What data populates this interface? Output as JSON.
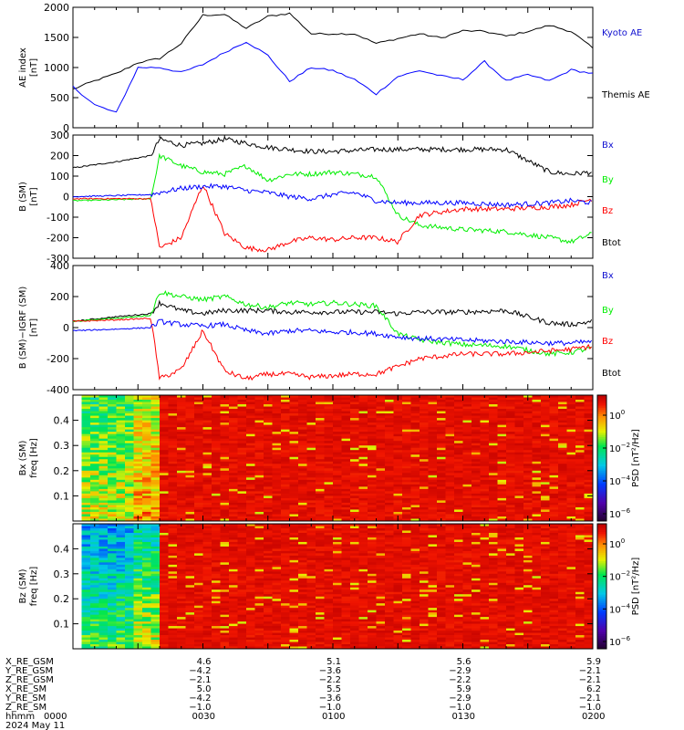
{
  "colors": {
    "black": "#000000",
    "blue": "#0000ff",
    "green": "#00ee00",
    "red": "#ff0000",
    "blue_label": "#1010d0"
  },
  "chart_data": [
    {
      "id": "ae",
      "type": "line",
      "ylabel": "AE index\n[nT]",
      "ylim": [
        0,
        2000
      ],
      "yticks": [
        0,
        500,
        1000,
        1500,
        2000
      ],
      "x_unit": "minutes since 0000 UT",
      "xlim": [
        0,
        120
      ],
      "series": [
        {
          "name": "Kyoto AE",
          "color": "#000000",
          "x": [
            0,
            5,
            10,
            15,
            20,
            25,
            30,
            35,
            40,
            45,
            50,
            55,
            60,
            65,
            70,
            75,
            80,
            85,
            90,
            95,
            100,
            105,
            110,
            115,
            120
          ],
          "y": [
            640,
            780,
            900,
            1080,
            1150,
            1400,
            1870,
            1880,
            1650,
            1850,
            1900,
            1560,
            1560,
            1560,
            1400,
            1480,
            1560,
            1490,
            1610,
            1600,
            1520,
            1600,
            1700,
            1600,
            1320
          ]
        },
        {
          "name": "Themis AE",
          "color": "#0000ff",
          "x": [
            0,
            5,
            10,
            15,
            20,
            25,
            30,
            35,
            40,
            45,
            50,
            55,
            60,
            65,
            70,
            75,
            80,
            85,
            90,
            95,
            100,
            105,
            110,
            115,
            120
          ],
          "y": [
            680,
            380,
            250,
            1000,
            1000,
            920,
            1050,
            1250,
            1430,
            1200,
            770,
            1000,
            950,
            800,
            560,
            850,
            950,
            860,
            800,
            1100,
            780,
            880,
            780,
            960,
            900
          ]
        }
      ]
    },
    {
      "id": "bsm",
      "type": "line",
      "ylabel": "B (SM)\n[nT]",
      "ylim": [
        -300,
        300
      ],
      "yticks": [
        -300,
        -200,
        -100,
        0,
        100,
        200,
        300
      ],
      "xlim": [
        0,
        120
      ],
      "series": [
        {
          "name": "Bx",
          "color": "#0000ff",
          "x": [
            0,
            10,
            18,
            20,
            25,
            30,
            35,
            40,
            45,
            50,
            55,
            60,
            65,
            70,
            75,
            80,
            90,
            100,
            110,
            115,
            120
          ],
          "y": [
            0,
            5,
            10,
            20,
            40,
            50,
            50,
            30,
            20,
            0,
            -10,
            10,
            20,
            -20,
            -30,
            -30,
            -30,
            -40,
            -30,
            -20,
            -30
          ]
        },
        {
          "name": "By",
          "color": "#00ee00",
          "x": [
            0,
            10,
            18,
            20,
            25,
            30,
            35,
            40,
            45,
            50,
            55,
            60,
            65,
            70,
            75,
            80,
            90,
            100,
            110,
            115,
            120
          ],
          "y": [
            -20,
            -15,
            -10,
            200,
            150,
            120,
            110,
            150,
            80,
            110,
            110,
            120,
            110,
            100,
            -90,
            -140,
            -160,
            -170,
            -200,
            -220,
            -180
          ]
        },
        {
          "name": "Bz",
          "color": "#ff0000",
          "x": [
            0,
            10,
            18,
            20,
            25,
            30,
            35,
            40,
            45,
            50,
            55,
            60,
            65,
            70,
            75,
            80,
            90,
            100,
            110,
            115,
            120
          ],
          "y": [
            -10,
            -10,
            -10,
            -250,
            -200,
            60,
            -180,
            -250,
            -260,
            -220,
            -200,
            -210,
            -200,
            -200,
            -220,
            -90,
            -60,
            -60,
            -50,
            -40,
            -10
          ]
        },
        {
          "name": "Btot",
          "color": "#000000",
          "x": [
            0,
            10,
            18,
            20,
            25,
            30,
            35,
            40,
            45,
            50,
            55,
            60,
            65,
            70,
            75,
            80,
            90,
            100,
            110,
            115,
            120
          ],
          "y": [
            140,
            170,
            200,
            280,
            250,
            260,
            280,
            260,
            240,
            230,
            220,
            220,
            225,
            230,
            230,
            230,
            230,
            230,
            120,
            110,
            120
          ]
        }
      ]
    },
    {
      "id": "bsm_igrf",
      "type": "line",
      "ylabel": "B (SM)−IGRF (SM)\n[nT]",
      "ylim": [
        -400,
        400
      ],
      "yticks": [
        -400,
        -200,
        0,
        200,
        400
      ],
      "xlim": [
        0,
        120
      ],
      "series": [
        {
          "name": "Bx",
          "color": "#0000ff",
          "x": [
            0,
            10,
            18,
            20,
            25,
            30,
            35,
            40,
            45,
            50,
            55,
            60,
            65,
            70,
            75,
            80,
            90,
            100,
            110,
            115,
            120
          ],
          "y": [
            -20,
            -10,
            0,
            40,
            20,
            10,
            20,
            -20,
            -40,
            -20,
            -20,
            -30,
            -30,
            -40,
            -60,
            -70,
            -80,
            -90,
            -100,
            -100,
            -90
          ]
        },
        {
          "name": "By",
          "color": "#00ee00",
          "x": [
            0,
            10,
            18,
            20,
            25,
            30,
            35,
            40,
            45,
            50,
            55,
            60,
            65,
            70,
            75,
            80,
            90,
            100,
            110,
            115,
            120
          ],
          "y": [
            40,
            60,
            80,
            230,
            200,
            180,
            200,
            150,
            130,
            160,
            150,
            160,
            150,
            140,
            -40,
            -80,
            -110,
            -120,
            -170,
            -160,
            -130
          ]
        },
        {
          "name": "Bz",
          "color": "#ff0000",
          "x": [
            0,
            10,
            18,
            20,
            25,
            30,
            35,
            40,
            45,
            50,
            55,
            60,
            65,
            70,
            75,
            80,
            90,
            100,
            110,
            115,
            120
          ],
          "y": [
            40,
            50,
            60,
            -330,
            -270,
            -20,
            -280,
            -330,
            -300,
            -300,
            -320,
            -310,
            -300,
            -300,
            -250,
            -200,
            -170,
            -170,
            -150,
            -140,
            -120
          ]
        },
        {
          "name": "Btot",
          "color": "#000000",
          "x": [
            0,
            10,
            18,
            20,
            25,
            30,
            35,
            40,
            45,
            50,
            55,
            60,
            65,
            70,
            75,
            80,
            90,
            100,
            110,
            115,
            120
          ],
          "y": [
            40,
            70,
            90,
            160,
            110,
            90,
            110,
            110,
            110,
            100,
            100,
            100,
            100,
            100,
            90,
            100,
            100,
            110,
            30,
            20,
            40
          ]
        }
      ]
    },
    {
      "id": "bx_spec",
      "type": "heatmap",
      "ylabel": "Bx (SM)\nfreq [Hz]",
      "ylim": [
        0,
        0.5
      ],
      "yticks": [
        0.1,
        0.2,
        0.3,
        0.4
      ],
      "colorbar_label": "PSD [nT²/Hz]",
      "colorbar_exponents": [
        0,
        -2,
        -4,
        -6
      ],
      "xlim": [
        0,
        120
      ],
      "low_power_after_x": 20
    },
    {
      "id": "bz_spec",
      "type": "heatmap",
      "ylabel": "Bz (SM)\nfreq [Hz]",
      "ylim": [
        0,
        0.5
      ],
      "yticks": [
        0.1,
        0.2,
        0.3,
        0.4
      ],
      "colorbar_label": "PSD [nT²/Hz]",
      "colorbar_exponents": [
        0,
        -2,
        -4,
        -6
      ],
      "xlim": [
        0,
        120
      ],
      "low_power_after_x": 20
    }
  ],
  "footer": {
    "row_labels": [
      "X_RE_GSM",
      "Y_RE_GSM",
      "Z_RE_GSM",
      "X_RE_SM",
      "Y_RE_SM",
      "Z_RE_SM",
      "hhmm",
      "2024 May 11"
    ],
    "hhmm_first": "0000",
    "columns": [
      {
        "time": "0030",
        "vals": [
          "4.6",
          "-4.2",
          "-2.1",
          "5.0",
          "-4.2",
          "-1.0"
        ]
      },
      {
        "time": "0100",
        "vals": [
          "5.1",
          "-3.6",
          "-2.2",
          "5.5",
          "-3.6",
          "-1.0"
        ]
      },
      {
        "time": "0130",
        "vals": [
          "5.6",
          "-2.9",
          "-2.2",
          "5.9",
          "-2.9",
          "-1.0"
        ]
      },
      {
        "time": "0200",
        "vals": [
          "5.9",
          "-2.1",
          "-2.1",
          "6.2",
          "-2.1",
          "-1.0"
        ]
      }
    ]
  }
}
